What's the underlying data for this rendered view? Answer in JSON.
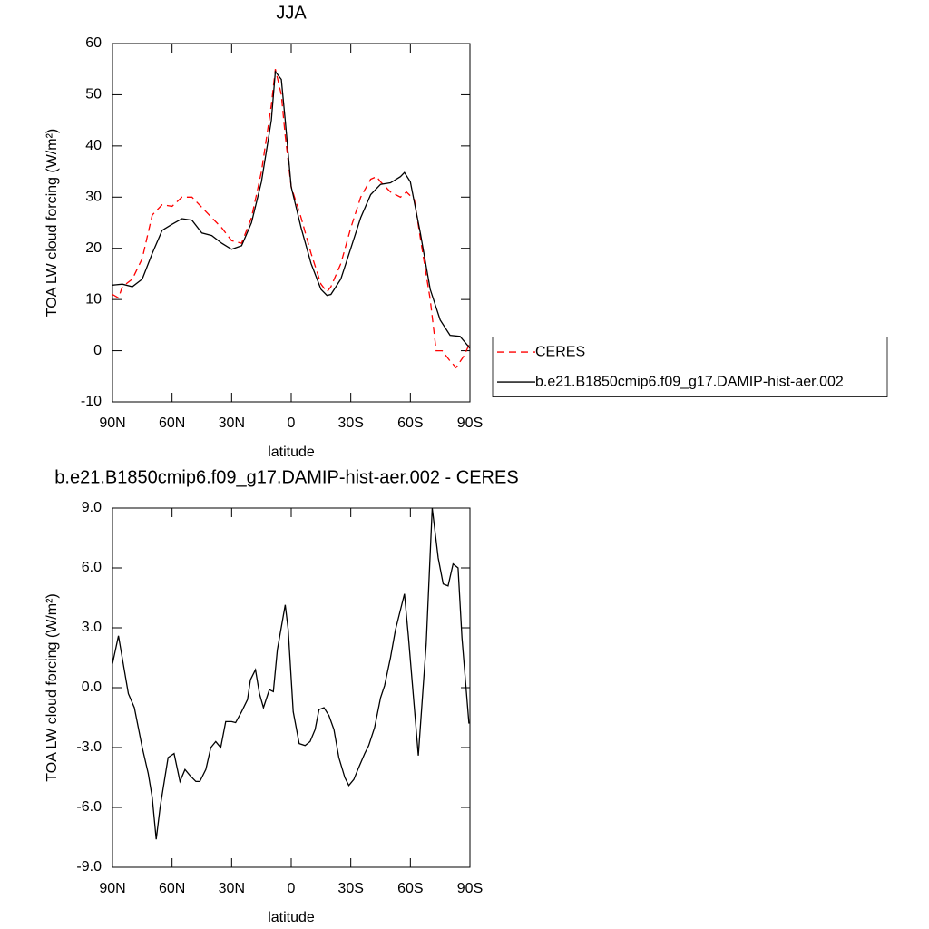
{
  "chart_data": [
    {
      "type": "line",
      "title": "JJA",
      "xlabel": "latitude",
      "ylabel": "TOA LW cloud forcing (W/m²)",
      "xlim": [
        90,
        -90
      ],
      "xticks": [
        {
          "value": 90,
          "label": "90N"
        },
        {
          "value": 60,
          "label": "60N"
        },
        {
          "value": 30,
          "label": "30N"
        },
        0,
        {
          "value": -30,
          "label": "30S"
        },
        {
          "value": -60,
          "label": "60S"
        },
        {
          "value": -90,
          "label": "90S"
        }
      ],
      "ylim": [
        -10,
        60
      ],
      "yticks": [
        -10,
        0,
        10,
        20,
        30,
        40,
        50,
        60
      ],
      "legend_position": "right",
      "series": [
        {
          "name": "CERES",
          "color": "#ff0000",
          "line_style": "dashed",
          "x": [
            90,
            87,
            85,
            80,
            75,
            70,
            65,
            60,
            55,
            50,
            45,
            40,
            35,
            30,
            25,
            20,
            15,
            10,
            8,
            5,
            3,
            0,
            -5,
            -10,
            -15,
            -18,
            -20,
            -25,
            -30,
            -35,
            -40,
            -43,
            -45,
            -50,
            -55,
            -58,
            -62,
            -65,
            -70,
            -73,
            -76,
            -80,
            -83,
            -87,
            -90
          ],
          "values": [
            11,
            10.3,
            12.5,
            14,
            18,
            26.5,
            28.5,
            28.2,
            30,
            30,
            28,
            26,
            24,
            21.5,
            21,
            26,
            35,
            48,
            55,
            50,
            42,
            32,
            26,
            19,
            13,
            11.5,
            12.5,
            17,
            24,
            30,
            33.5,
            34,
            33,
            31,
            30,
            31,
            29.5,
            22,
            10,
            0,
            0,
            -2,
            -3.3,
            -1,
            1.5
          ]
        },
        {
          "name": "b.e21.B1850cmip6.f09_g17.DAMIP-hist-aer.002",
          "color": "#000000",
          "line_style": "solid",
          "x": [
            90,
            85,
            80,
            75,
            70,
            65,
            60,
            55,
            50,
            45,
            40,
            35,
            30,
            25,
            20,
            15,
            10,
            8,
            5,
            3,
            0,
            -5,
            -10,
            -15,
            -18,
            -20,
            -25,
            -30,
            -35,
            -40,
            -45,
            -50,
            -55,
            -57,
            -60,
            -65,
            -70,
            -75,
            -80,
            -85,
            -90
          ],
          "values": [
            12.8,
            13,
            12.5,
            14,
            19,
            23.5,
            24.7,
            25.8,
            25.5,
            23,
            22.5,
            21,
            19.8,
            20.5,
            25,
            33,
            45,
            54.5,
            53,
            45,
            32,
            24,
            17,
            12,
            10.8,
            11,
            14,
            20,
            26,
            30.5,
            32.5,
            32.8,
            34,
            34.8,
            33,
            23,
            12,
            6,
            3,
            2.8,
            0.5
          ]
        }
      ]
    },
    {
      "type": "line",
      "title": "b.e21.B1850cmip6.f09_g17.DAMIP-hist-aer.002 - CERES",
      "xlabel": "latitude",
      "ylabel": "TOA LW cloud forcing (W/m²)",
      "xlim": [
        90,
        -90
      ],
      "xticks": [
        {
          "value": 90,
          "label": "90N"
        },
        {
          "value": 60,
          "label": "60N"
        },
        {
          "value": 30,
          "label": "30N"
        },
        0,
        {
          "value": -30,
          "label": "30S"
        },
        {
          "value": -60,
          "label": "60S"
        },
        {
          "value": -90,
          "label": "90S"
        }
      ],
      "ylim": [
        -9,
        9
      ],
      "yticks": [
        {
          "value": -9,
          "label": "-9.0"
        },
        {
          "value": -6,
          "label": "-6.0"
        },
        {
          "value": -3,
          "label": "-3.0"
        },
        {
          "value": 0,
          "label": "0.0"
        },
        {
          "value": 3,
          "label": "3.0"
        },
        {
          "value": 6,
          "label": "6.0"
        },
        {
          "value": 9,
          "label": "9.0"
        }
      ],
      "color": "#000000",
      "x": [
        90,
        87,
        82,
        79,
        75,
        72,
        70,
        68,
        66,
        62,
        59,
        56,
        53.5,
        51,
        48,
        46,
        43,
        40.5,
        38,
        35.5,
        33,
        30,
        28,
        25,
        22,
        20.5,
        18,
        16,
        14,
        11,
        9,
        7,
        3,
        1.5,
        -1,
        -4,
        -7,
        -9.5,
        -12,
        -14,
        -16.5,
        -19,
        -21.5,
        -24,
        -27,
        -29,
        -31.5,
        -34,
        -37,
        -39,
        -42,
        -45,
        -47,
        -50,
        -52.5,
        -57,
        -59,
        -64,
        -68,
        -71,
        -74,
        -76.5,
        -79,
        -81.5,
        -84,
        -86,
        -89.5
      ],
      "values": [
        1.2,
        2.6,
        -0.3,
        -1.0,
        -3.0,
        -4.3,
        -5.5,
        -7.6,
        -6,
        -3.5,
        -3.3,
        -4.7,
        -4.1,
        -4.4,
        -4.7,
        -4.7,
        -4.1,
        -3.0,
        -2.7,
        -3.0,
        -1.7,
        -1.7,
        -1.75,
        -1.2,
        -0.6,
        0.4,
        0.9,
        -0.3,
        -1.0,
        -0.1,
        -0.2,
        1.9,
        4.15,
        2.9,
        -1.2,
        -2.8,
        -2.9,
        -2.7,
        -2.1,
        -1.1,
        -1.0,
        -1.4,
        -2.1,
        -3.5,
        -4.5,
        -4.9,
        -4.6,
        -4.0,
        -3.3,
        -2.9,
        -2.0,
        -0.5,
        0.1,
        1.5,
        2.9,
        4.7,
        2.6,
        -3.4,
        2.2,
        9.0,
        6.5,
        5.2,
        5.1,
        6.2,
        6.0,
        2.5,
        -1.8
      ]
    }
  ]
}
